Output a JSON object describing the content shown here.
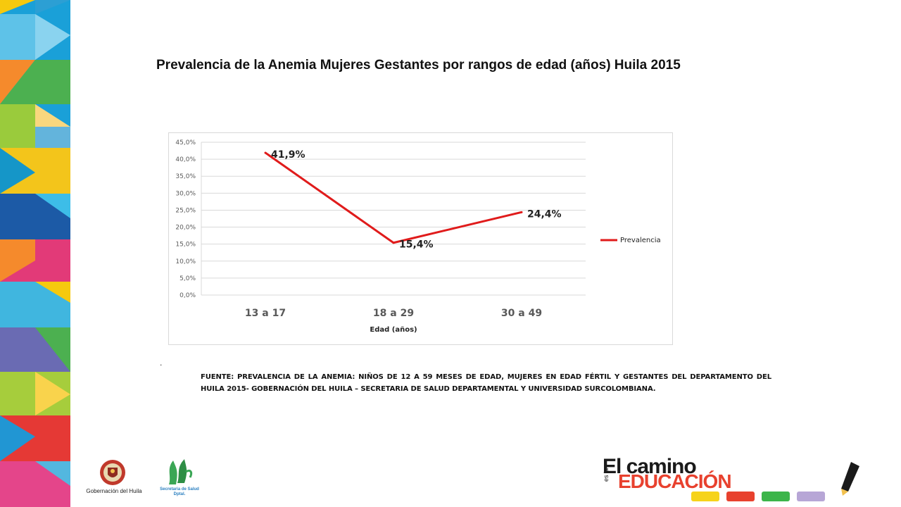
{
  "title": "Prevalencia de la Anemia Mujeres Gestantes por rangos de edad (años) Huila 2015",
  "chart_data": {
    "type": "line",
    "categories": [
      "13 a 17",
      "18 a 29",
      "30 a 49"
    ],
    "series": [
      {
        "name": "Prevalencia",
        "values": [
          41.9,
          15.4,
          24.4
        ],
        "labels": [
          "41,9%",
          "15,4%",
          "24,4%"
        ],
        "color": "#e01b1b"
      }
    ],
    "xlabel": "Edad (años)",
    "ylabel": "",
    "ylim": [
      0,
      45
    ],
    "yticks": [
      "0,0%",
      "5,0%",
      "10,0%",
      "15,0%",
      "20,0%",
      "25,0%",
      "30,0%",
      "35,0%",
      "40,0%",
      "45,0%"
    ],
    "grid": true,
    "legend": "right"
  },
  "dot": ".",
  "source": "FUENTE: PREVALENCIA  DE LA ANEMIA: NIÑOS DE 12 A 59 MESES DE EDAD, MUJERES EN EDAD FÉRTIL Y GESTANTES DEL DEPARTAMENTO DEL HUILA 2015- GOBERNACIÓN DEL HUILA – SECRETARIA DE SALUD DEPARTAMENTAL  Y UNIVERSIDAD SURCOLOMBIANA.",
  "logos": {
    "gobernacion": "Gobernación del Huila",
    "secretaria_line1": "Secretaria de Salud",
    "secretaria_line2": "Dptal.",
    "edu_line1": "El camino",
    "edu_esla": "es la",
    "edu_line2": "EDUCACIÓN"
  },
  "colors": {
    "line": "#e01b1b",
    "grid": "#d9d9d9",
    "axis_text": "#595959"
  }
}
